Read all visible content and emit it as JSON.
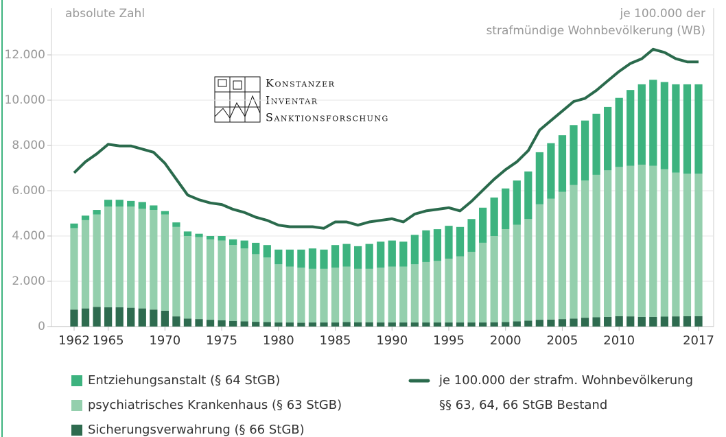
{
  "chart_data": {
    "type": "bar",
    "stacked": true,
    "ylabel": "absolute Zahl",
    "y2label": [
      "je 100.000 der",
      "strafmündige Wohnbevölkerung (WB)"
    ],
    "logo": [
      "Konstanzer",
      "Inventar",
      "Sanktionsforschung"
    ],
    "legend_note": "§§ 63, 64, 66 StGB Bestand",
    "categories": [
      "1962",
      null,
      null,
      "1965",
      null,
      null,
      null,
      null,
      "1970",
      null,
      null,
      null,
      null,
      "1975",
      null,
      null,
      null,
      null,
      "1980",
      null,
      null,
      null,
      null,
      "1985",
      null,
      null,
      null,
      null,
      "1990",
      null,
      null,
      null,
      null,
      "1995",
      null,
      null,
      null,
      null,
      "2000",
      null,
      null,
      null,
      null,
      "2005",
      null,
      null,
      null,
      null,
      "2010",
      null,
      null,
      null,
      null,
      null,
      null,
      "2017"
    ],
    "ylim": [
      0,
      14000
    ],
    "yticks": [
      0,
      {
        "value": 2000,
        "label": "2.000"
      },
      {
        "value": 4000,
        "label": "4.000"
      },
      {
        "value": 6000,
        "label": "6.000"
      },
      {
        "value": 8000,
        "label": "8.000"
      },
      {
        "value": 10000,
        "label": "10.000"
      },
      {
        "value": 12000,
        "label": "12.000"
      }
    ],
    "y2lim": [
      0,
      20
    ],
    "grid": true,
    "series": [
      {
        "name": "Entziehungsanstalt (§ 64 StGB)",
        "color": "#3db37f",
        "values": [
          200,
          200,
          200,
          300,
          300,
          250,
          300,
          200,
          150,
          200,
          200,
          150,
          150,
          200,
          250,
          350,
          500,
          550,
          650,
          750,
          800,
          900,
          850,
          1000,
          1000,
          1000,
          1100,
          1150,
          1150,
          1100,
          1300,
          1400,
          1400,
          1450,
          1300,
          1450,
          1550,
          1700,
          1800,
          1950,
          2100,
          2300,
          2450,
          2500,
          2650,
          2650,
          2700,
          2800,
          3050,
          3350,
          3550,
          3800,
          3850,
          3900,
          3950,
          3950
        ]
      },
      {
        "name": "psychiatrisches Krankenhaus (§ 63 StGB)",
        "color": "#94cfad",
        "values": [
          3600,
          3900,
          4080,
          4450,
          4450,
          4470,
          4400,
          4400,
          4250,
          3950,
          3650,
          3620,
          3550,
          3520,
          3350,
          3220,
          2990,
          2850,
          2570,
          2470,
          2430,
          2370,
          2370,
          2420,
          2450,
          2360,
          2360,
          2420,
          2470,
          2470,
          2570,
          2670,
          2720,
          2820,
          2920,
          3120,
          3520,
          3810,
          4100,
          4270,
          4490,
          5100,
          5340,
          5620,
          5900,
          6060,
          6290,
          6470,
          6590,
          6650,
          6720,
          6670,
          6510,
          6350,
          6290,
          6290
        ]
      },
      {
        "name": "Sicherungsverwahrung (§ 66 StGB)",
        "color": "#2e6b4f",
        "values": [
          750,
          800,
          870,
          850,
          850,
          830,
          800,
          750,
          700,
          450,
          350,
          330,
          300,
          280,
          250,
          230,
          210,
          200,
          180,
          180,
          170,
          180,
          180,
          180,
          200,
          190,
          190,
          180,
          180,
          180,
          180,
          180,
          180,
          180,
          180,
          180,
          180,
          190,
          200,
          230,
          260,
          300,
          310,
          330,
          350,
          390,
          410,
          430,
          460,
          450,
          430,
          430,
          440,
          450,
          460,
          460
        ]
      },
      {
        "name": "je 100.000 der strafm. Wohnbevölkerung",
        "color": "#2a6a4c",
        "type": "line",
        "axis": "y2",
        "values": [
          9.7,
          10.4,
          10.9,
          11.5,
          11.4,
          11.4,
          11.2,
          11.0,
          10.3,
          9.3,
          8.3,
          8.0,
          7.8,
          7.7,
          7.4,
          7.2,
          6.9,
          6.7,
          6.4,
          6.3,
          6.3,
          6.3,
          6.2,
          6.6,
          6.6,
          6.4,
          6.6,
          6.7,
          6.8,
          6.6,
          7.1,
          7.3,
          7.4,
          7.5,
          7.3,
          7.9,
          8.6,
          9.3,
          9.9,
          10.4,
          11.1,
          12.4,
          13.0,
          13.6,
          14.2,
          14.4,
          14.9,
          15.5,
          16.1,
          16.6,
          16.9,
          17.5,
          17.3,
          16.9,
          16.7,
          16.7
        ]
      }
    ]
  }
}
